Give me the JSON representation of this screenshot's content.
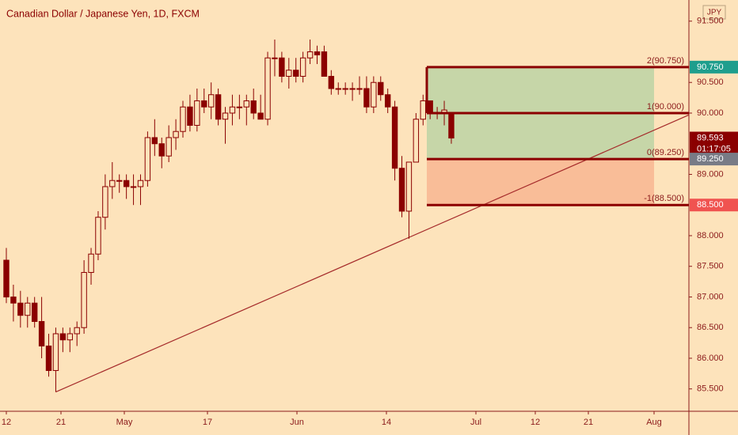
{
  "chart_data": {
    "type": "candlestick",
    "title": "Canadian Dollar / Japanese Yen, 1D, FXCM",
    "currency": "JPY",
    "up_color": "#fde3bb",
    "down_color": "#8b0000",
    "outline_color": "#8b0000",
    "x_labels": [
      "12",
      "21",
      "May",
      "17",
      "Jun",
      "14",
      "Jul",
      "12",
      "21",
      "Aug"
    ],
    "open": [
      87.6,
      87.0,
      86.9,
      86.7,
      86.9,
      86.6,
      86.2,
      85.8,
      86.4,
      86.3,
      86.4,
      86.5,
      87.4,
      87.7,
      88.3,
      88.8,
      88.9,
      88.9,
      88.8,
      88.8,
      88.9,
      89.6,
      89.5,
      89.3,
      89.6,
      89.7,
      90.1,
      89.8,
      90.2,
      90.1,
      90.3,
      89.9,
      90.0,
      90.1,
      90.1,
      90.2,
      90.0,
      89.9,
      90.9,
      90.9,
      90.6,
      90.7,
      90.6,
      90.9,
      91.0,
      91.0,
      90.6,
      90.4,
      90.4,
      90.4,
      90.4,
      90.4,
      90.1,
      90.5,
      90.3,
      90.1,
      89.1,
      88.4,
      89.2,
      89.9,
      90.2,
      90.0,
      90.0,
      90.0
    ],
    "high": [
      87.8,
      87.2,
      87.1,
      87.0,
      87.0,
      87.0,
      86.4,
      86.5,
      86.5,
      86.5,
      86.6,
      87.6,
      87.8,
      88.4,
      89.0,
      89.2,
      89.0,
      89.0,
      89.0,
      89.0,
      89.7,
      89.9,
      89.6,
      89.8,
      89.9,
      90.2,
      90.3,
      90.4,
      90.4,
      90.5,
      90.4,
      90.1,
      90.3,
      90.3,
      90.3,
      90.4,
      90.3,
      91.0,
      91.2,
      91.0,
      90.9,
      90.9,
      91.0,
      91.2,
      91.1,
      91.1,
      90.7,
      90.5,
      90.5,
      90.5,
      90.6,
      90.6,
      90.6,
      90.6,
      90.4,
      90.2,
      89.3,
      89.2,
      90.0,
      90.3,
      90.2,
      90.1,
      90.2,
      90.0
    ],
    "low": [
      86.9,
      86.6,
      86.5,
      86.5,
      86.5,
      86.0,
      85.7,
      85.45,
      86.1,
      86.1,
      86.2,
      86.4,
      87.2,
      87.6,
      88.1,
      88.6,
      88.7,
      88.6,
      88.5,
      88.5,
      88.8,
      89.3,
      89.1,
      89.2,
      89.4,
      89.6,
      89.7,
      89.7,
      90.0,
      89.9,
      89.8,
      89.5,
      89.8,
      89.9,
      89.8,
      89.9,
      89.9,
      89.8,
      90.6,
      90.5,
      90.4,
      90.5,
      90.5,
      90.8,
      90.8,
      90.6,
      90.3,
      90.3,
      90.3,
      90.2,
      90.3,
      90.0,
      90.0,
      90.2,
      90.0,
      88.9,
      88.3,
      87.95,
      89.2,
      89.8,
      89.9,
      89.9,
      89.8,
      89.5
    ],
    "close": [
      87.0,
      86.9,
      86.7,
      86.9,
      86.6,
      86.2,
      85.8,
      86.4,
      86.3,
      86.4,
      86.5,
      87.4,
      87.7,
      88.3,
      88.8,
      88.9,
      88.9,
      88.8,
      88.8,
      88.9,
      89.6,
      89.5,
      89.3,
      89.6,
      89.7,
      90.1,
      89.8,
      90.2,
      90.1,
      90.3,
      89.9,
      90.0,
      90.1,
      90.1,
      90.2,
      90.0,
      89.9,
      90.9,
      90.9,
      90.6,
      90.7,
      90.6,
      90.9,
      91.0,
      90.95,
      90.6,
      90.4,
      90.4,
      90.4,
      90.4,
      90.4,
      90.1,
      90.5,
      90.3,
      90.1,
      89.1,
      88.4,
      89.2,
      89.9,
      90.2,
      90.0,
      90.0,
      90.05,
      89.593
    ],
    "ylim": [
      85.135,
      91.845
    ],
    "yticks": [
      {
        "value": 85.5,
        "label": "85.500"
      },
      {
        "value": 86.0,
        "label": "86.000"
      },
      {
        "value": 86.5,
        "label": "86.500"
      },
      {
        "value": 87.0,
        "label": "87.000"
      },
      {
        "value": 87.5,
        "label": "87.500"
      },
      {
        "value": 88.0,
        "label": "88.000"
      },
      {
        "value": 89.0,
        "label": "89.000"
      },
      {
        "value": 90.0,
        "label": "90.000"
      },
      {
        "value": 90.5,
        "label": "90.500"
      },
      {
        "value": 91.5,
        "label": "91.500"
      }
    ],
    "trendline": [
      85.45,
      89.97
    ],
    "fib_levels": [
      {
        "value": 90.75,
        "label": "2(90.750)"
      },
      {
        "value": 90.0,
        "label": "1(90.000)"
      },
      {
        "value": 89.25,
        "label": "0(89.250)"
      },
      {
        "value": 88.5,
        "label": "-1(88.500)"
      }
    ],
    "profit_color": "#c6d6a8",
    "loss_color": "#f9bd98",
    "price_labels": [
      {
        "value": 90.75,
        "label": "90.750",
        "color": "#1e9e8d"
      },
      {
        "value": 89.593,
        "label": "89.593",
        "color": "#8b0000",
        "countdown": "01:17:05"
      },
      {
        "value": 89.25,
        "label": "89.250",
        "color": "#787b86"
      },
      {
        "value": 88.5,
        "label": "88.500",
        "color": "#f05350"
      }
    ]
  }
}
